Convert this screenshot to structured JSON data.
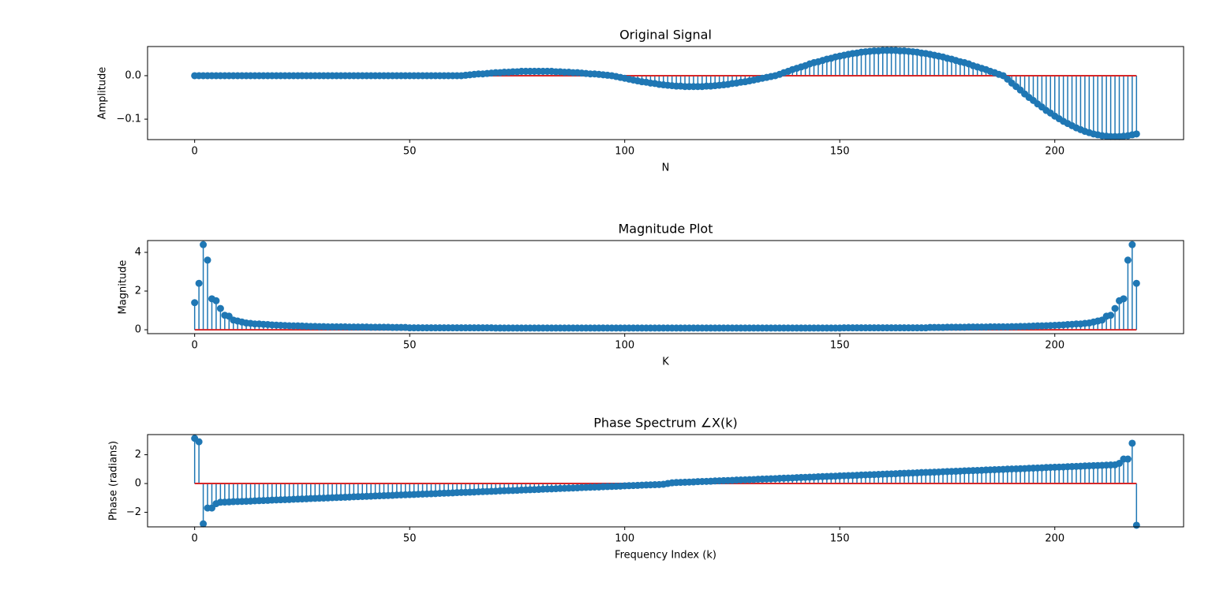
{
  "chart_data": [
    {
      "type": "stem",
      "title": "Original Signal",
      "xlabel": "N",
      "ylabel": "Amplitude",
      "color": "#1f77b4",
      "baseline_color": "#d62728",
      "xlim": [
        -10.95,
        229.95
      ],
      "xticks": [
        0,
        50,
        100,
        150,
        200
      ],
      "ylim": [
        -0.147,
        0.067
      ],
      "yticks": [
        {
          "value": -0.1,
          "label": "−0.1"
        },
        {
          "value": 0,
          "label": "0.0"
        }
      ],
      "x": [
        0,
        1,
        2,
        3,
        4,
        5,
        6,
        7,
        8,
        9,
        10,
        11,
        12,
        13,
        14,
        15,
        16,
        17,
        18,
        19,
        20,
        21,
        22,
        23,
        24,
        25,
        26,
        27,
        28,
        29,
        30,
        31,
        32,
        33,
        34,
        35,
        36,
        37,
        38,
        39,
        40,
        41,
        42,
        43,
        44,
        45,
        46,
        47,
        48,
        49,
        50,
        51,
        52,
        53,
        54,
        55,
        56,
        57,
        58,
        59,
        60,
        61,
        62,
        63,
        64,
        65,
        66,
        67,
        68,
        69,
        70,
        71,
        72,
        73,
        74,
        75,
        76,
        77,
        78,
        79,
        80,
        81,
        82,
        83,
        84,
        85,
        86,
        87,
        88,
        89,
        90,
        91,
        92,
        93,
        94,
        95,
        96,
        97,
        98,
        99,
        100,
        101,
        102,
        103,
        104,
        105,
        106,
        107,
        108,
        109,
        110,
        111,
        112,
        113,
        114,
        115,
        116,
        117,
        118,
        119,
        120,
        121,
        122,
        123,
        124,
        125,
        126,
        127,
        128,
        129,
        130,
        131,
        132,
        133,
        134,
        135,
        136,
        137,
        138,
        139,
        140,
        141,
        142,
        143,
        144,
        145,
        146,
        147,
        148,
        149,
        150,
        151,
        152,
        153,
        154,
        155,
        156,
        157,
        158,
        159,
        160,
        161,
        162,
        163,
        164,
        165,
        166,
        167,
        168,
        169,
        170,
        171,
        172,
        173,
        174,
        175,
        176,
        177,
        178,
        179,
        180,
        181,
        182,
        183,
        184,
        185,
        186,
        187,
        188,
        189,
        190,
        191,
        192,
        193,
        194,
        195,
        196,
        197,
        198,
        199,
        200,
        201,
        202,
        203,
        204,
        205,
        206,
        207,
        208,
        209,
        210,
        211,
        212,
        213,
        214,
        215,
        216,
        217,
        218,
        219
      ],
      "values": [
        0,
        0,
        0,
        0,
        0,
        0,
        0,
        0,
        0,
        0,
        0,
        0,
        0,
        0,
        0,
        0,
        0,
        0,
        0,
        0,
        0,
        0,
        0,
        0,
        0,
        0,
        0,
        0,
        0,
        0,
        0,
        0,
        0,
        0,
        0,
        0,
        0,
        0,
        0,
        0,
        0,
        0,
        0,
        0,
        0,
        0,
        0,
        0,
        0,
        0,
        0,
        0,
        0,
        0,
        0,
        0,
        0,
        0,
        0,
        0,
        0,
        0,
        0,
        0.001,
        0.002,
        0.003,
        0.004,
        0.004,
        0.005,
        0.006,
        0.007,
        0.007,
        0.008,
        0.008,
        0.009,
        0.009,
        0.01,
        0.01,
        0.01,
        0.01,
        0.01,
        0.01,
        0.01,
        0.01,
        0.009,
        0.009,
        0.008,
        0.008,
        0.007,
        0.007,
        0.006,
        0.005,
        0.004,
        0.004,
        0.003,
        0.002,
        0.001,
        0,
        -0.002,
        -0.004,
        -0.006,
        -0.008,
        -0.01,
        -0.012,
        -0.014,
        -0.015,
        -0.017,
        -0.018,
        -0.02,
        -0.021,
        -0.022,
        -0.023,
        -0.024,
        -0.024,
        -0.025,
        -0.025,
        -0.025,
        -0.025,
        -0.025,
        -0.024,
        -0.024,
        -0.023,
        -0.022,
        -0.021,
        -0.02,
        -0.018,
        -0.017,
        -0.015,
        -0.014,
        -0.012,
        -0.01,
        -0.008,
        -0.006,
        -0.004,
        -0.002,
        0,
        0.003,
        0.007,
        0.01,
        0.014,
        0.017,
        0.02,
        0.023,
        0.027,
        0.03,
        0.032,
        0.035,
        0.038,
        0.04,
        0.043,
        0.045,
        0.047,
        0.049,
        0.051,
        0.052,
        0.054,
        0.055,
        0.056,
        0.057,
        0.057,
        0.058,
        0.058,
        0.058,
        0.058,
        0.057,
        0.057,
        0.056,
        0.055,
        0.054,
        0.052,
        0.051,
        0.049,
        0.047,
        0.045,
        0.043,
        0.04,
        0.038,
        0.035,
        0.032,
        0.03,
        0.027,
        0.023,
        0.02,
        0.017,
        0.014,
        0.01,
        0.007,
        0.003,
        0,
        -0.008,
        -0.017,
        -0.025,
        -0.033,
        -0.042,
        -0.05,
        -0.057,
        -0.065,
        -0.072,
        -0.08,
        -0.086,
        -0.093,
        -0.099,
        -0.105,
        -0.11,
        -0.115,
        -0.12,
        -0.124,
        -0.128,
        -0.131,
        -0.134,
        -0.136,
        -0.138,
        -0.139,
        -0.14,
        -0.14,
        -0.14,
        -0.139,
        -0.138,
        -0.136,
        -0.134
      ]
    },
    {
      "type": "stem",
      "title": "Magnitude Plot",
      "xlabel": "K",
      "ylabel": "Magnitude",
      "color": "#1f77b4",
      "baseline_color": "#d62728",
      "xlim": [
        -10.95,
        229.95
      ],
      "xticks": [
        0,
        50,
        100,
        150,
        200
      ],
      "ylim": [
        -0.2,
        4.61
      ],
      "yticks": [
        0,
        2,
        4
      ],
      "x": [
        0,
        1,
        2,
        3,
        4,
        5,
        6,
        7,
        8,
        9,
        10,
        11,
        12,
        13,
        14,
        15,
        16,
        17,
        18,
        19,
        20,
        21,
        22,
        23,
        24,
        25,
        26,
        27,
        28,
        29,
        30,
        31,
        32,
        33,
        34,
        35,
        36,
        37,
        38,
        39,
        40,
        41,
        42,
        43,
        44,
        45,
        46,
        47,
        48,
        49,
        50,
        51,
        52,
        53,
        54,
        55,
        56,
        57,
        58,
        59,
        60,
        61,
        62,
        63,
        64,
        65,
        66,
        67,
        68,
        69,
        70,
        71,
        72,
        73,
        74,
        75,
        76,
        77,
        78,
        79,
        80,
        81,
        82,
        83,
        84,
        85,
        86,
        87,
        88,
        89,
        90,
        91,
        92,
        93,
        94,
        95,
        96,
        97,
        98,
        99,
        100,
        101,
        102,
        103,
        104,
        105,
        106,
        107,
        108,
        109,
        110,
        111,
        112,
        113,
        114,
        115,
        116,
        117,
        118,
        119,
        120,
        121,
        122,
        123,
        124,
        125,
        126,
        127,
        128,
        129,
        130,
        131,
        132,
        133,
        134,
        135,
        136,
        137,
        138,
        139,
        140,
        141,
        142,
        143,
        144,
        145,
        146,
        147,
        148,
        149,
        150,
        151,
        152,
        153,
        154,
        155,
        156,
        157,
        158,
        159,
        160,
        161,
        162,
        163,
        164,
        165,
        166,
        167,
        168,
        169,
        170,
        171,
        172,
        173,
        174,
        175,
        176,
        177,
        178,
        179,
        180,
        181,
        182,
        183,
        184,
        185,
        186,
        187,
        188,
        189,
        190,
        191,
        192,
        193,
        194,
        195,
        196,
        197,
        198,
        199,
        200,
        201,
        202,
        203,
        204,
        205,
        206,
        207,
        208,
        209,
        210,
        211,
        212,
        213,
        214,
        215,
        216,
        217,
        218,
        219
      ],
      "values": [
        1.4,
        2.4,
        4.4,
        3.6,
        1.6,
        1.5,
        1.1,
        0.75,
        0.7,
        0.5,
        0.45,
        0.4,
        0.35,
        0.33,
        0.3,
        0.3,
        0.28,
        0.27,
        0.25,
        0.24,
        0.23,
        0.22,
        0.21,
        0.2,
        0.2,
        0.19,
        0.18,
        0.17,
        0.17,
        0.16,
        0.16,
        0.15,
        0.15,
        0.15,
        0.15,
        0.15,
        0.14,
        0.14,
        0.14,
        0.14,
        0.14,
        0.13,
        0.13,
        0.13,
        0.13,
        0.13,
        0.12,
        0.12,
        0.12,
        0.12,
        0.1,
        0.1,
        0.1,
        0.1,
        0.1,
        0.1,
        0.1,
        0.1,
        0.1,
        0.1,
        0.1,
        0.1,
        0.1,
        0.1,
        0.1,
        0.1,
        0.1,
        0.1,
        0.1,
        0.1,
        0.09,
        0.09,
        0.09,
        0.09,
        0.09,
        0.09,
        0.09,
        0.09,
        0.09,
        0.09,
        0.09,
        0.09,
        0.09,
        0.09,
        0.09,
        0.09,
        0.09,
        0.09,
        0.09,
        0.09,
        0.09,
        0.09,
        0.09,
        0.09,
        0.09,
        0.09,
        0.09,
        0.09,
        0.09,
        0.09,
        0.09,
        0.09,
        0.09,
        0.09,
        0.09,
        0.09,
        0.09,
        0.09,
        0.09,
        0.09,
        0.09,
        0.09,
        0.09,
        0.09,
        0.09,
        0.09,
        0.09,
        0.09,
        0.09,
        0.09,
        0.09,
        0.09,
        0.09,
        0.09,
        0.09,
        0.09,
        0.09,
        0.09,
        0.09,
        0.09,
        0.09,
        0.09,
        0.09,
        0.09,
        0.09,
        0.09,
        0.09,
        0.09,
        0.09,
        0.09,
        0.09,
        0.09,
        0.09,
        0.09,
        0.09,
        0.09,
        0.09,
        0.09,
        0.09,
        0.09,
        0.09,
        0.1,
        0.1,
        0.1,
        0.1,
        0.1,
        0.1,
        0.1,
        0.1,
        0.1,
        0.1,
        0.1,
        0.1,
        0.1,
        0.1,
        0.1,
        0.1,
        0.1,
        0.1,
        0.1,
        0.1,
        0.12,
        0.12,
        0.12,
        0.12,
        0.13,
        0.13,
        0.13,
        0.13,
        0.13,
        0.14,
        0.14,
        0.14,
        0.14,
        0.14,
        0.15,
        0.15,
        0.15,
        0.15,
        0.15,
        0.16,
        0.16,
        0.17,
        0.17,
        0.18,
        0.19,
        0.2,
        0.2,
        0.21,
        0.22,
        0.23,
        0.24,
        0.25,
        0.27,
        0.28,
        0.3,
        0.3,
        0.33,
        0.35,
        0.4,
        0.45,
        0.5,
        0.7,
        0.75,
        1.1,
        1.5,
        1.6,
        3.6,
        4.4,
        2.4
      ]
    },
    {
      "type": "stem",
      "title": "Phase Spectrum ∠X(k)",
      "xlabel": "Frequency Index (k)",
      "ylabel": "Phase (radians)",
      "color": "#1f77b4",
      "baseline_color": "#d62728",
      "xlim": [
        -10.95,
        229.95
      ],
      "xticks": [
        0,
        50,
        100,
        150,
        200
      ],
      "ylim": [
        -3.01,
        3.4
      ],
      "yticks": [
        {
          "value": -2,
          "label": "−2"
        },
        0,
        2
      ],
      "x": [
        0,
        1,
        2,
        3,
        4,
        5,
        6,
        7,
        8,
        9,
        10,
        11,
        12,
        13,
        14,
        15,
        16,
        17,
        18,
        19,
        20,
        21,
        22,
        23,
        24,
        25,
        26,
        27,
        28,
        29,
        30,
        31,
        32,
        33,
        34,
        35,
        36,
        37,
        38,
        39,
        40,
        41,
        42,
        43,
        44,
        45,
        46,
        47,
        48,
        49,
        50,
        51,
        52,
        53,
        54,
        55,
        56,
        57,
        58,
        59,
        60,
        61,
        62,
        63,
        64,
        65,
        66,
        67,
        68,
        69,
        70,
        71,
        72,
        73,
        74,
        75,
        76,
        77,
        78,
        79,
        80,
        81,
        82,
        83,
        84,
        85,
        86,
        87,
        88,
        89,
        90,
        91,
        92,
        93,
        94,
        95,
        96,
        97,
        98,
        99,
        100,
        101,
        102,
        103,
        104,
        105,
        106,
        107,
        108,
        109,
        110,
        111,
        112,
        113,
        114,
        115,
        116,
        117,
        118,
        119,
        120,
        121,
        122,
        123,
        124,
        125,
        126,
        127,
        128,
        129,
        130,
        131,
        132,
        133,
        134,
        135,
        136,
        137,
        138,
        139,
        140,
        141,
        142,
        143,
        144,
        145,
        146,
        147,
        148,
        149,
        150,
        151,
        152,
        153,
        154,
        155,
        156,
        157,
        158,
        159,
        160,
        161,
        162,
        163,
        164,
        165,
        166,
        167,
        168,
        169,
        170,
        171,
        172,
        173,
        174,
        175,
        176,
        177,
        178,
        179,
        180,
        181,
        182,
        183,
        184,
        185,
        186,
        187,
        188,
        189,
        190,
        191,
        192,
        193,
        194,
        195,
        196,
        197,
        198,
        199,
        200,
        201,
        202,
        203,
        204,
        205,
        206,
        207,
        208,
        209,
        210,
        211,
        212,
        213,
        214,
        215,
        216,
        217,
        218,
        219
      ],
      "values": [
        3.14,
        2.9,
        -2.8,
        -1.7,
        -1.7,
        -1.4,
        -1.3,
        -1.29,
        -1.28,
        -1.26,
        -1.25,
        -1.24,
        -1.23,
        -1.22,
        -1.2,
        -1.19,
        -1.18,
        -1.17,
        -1.15,
        -1.14,
        -1.13,
        -1.12,
        -1.11,
        -1.09,
        -1.08,
        -1.07,
        -1.06,
        -1.04,
        -1.03,
        -1.02,
        -1.01,
        -1.0,
        -0.98,
        -0.97,
        -0.96,
        -0.95,
        -0.94,
        -0.92,
        -0.91,
        -0.9,
        -0.89,
        -0.88,
        -0.86,
        -0.85,
        -0.84,
        -0.83,
        -0.82,
        -0.8,
        -0.79,
        -0.78,
        -0.77,
        -0.76,
        -0.74,
        -0.73,
        -0.72,
        -0.71,
        -0.7,
        -0.68,
        -0.67,
        -0.66,
        -0.65,
        -0.63,
        -0.62,
        -0.61,
        -0.6,
        -0.59,
        -0.57,
        -0.56,
        -0.55,
        -0.54,
        -0.53,
        -0.51,
        -0.5,
        -0.49,
        -0.48,
        -0.47,
        -0.45,
        -0.44,
        -0.43,
        -0.42,
        -0.41,
        -0.39,
        -0.38,
        -0.37,
        -0.36,
        -0.34,
        -0.33,
        -0.32,
        -0.31,
        -0.3,
        -0.28,
        -0.27,
        -0.26,
        -0.25,
        -0.24,
        -0.22,
        -0.21,
        -0.2,
        -0.19,
        -0.18,
        -0.16,
        -0.15,
        -0.14,
        -0.13,
        -0.11,
        -0.1,
        -0.09,
        -0.08,
        -0.07,
        -0.05,
        0,
        0.05,
        0.07,
        0.08,
        0.09,
        0.1,
        0.11,
        0.13,
        0.14,
        0.15,
        0.16,
        0.18,
        0.19,
        0.2,
        0.21,
        0.22,
        0.24,
        0.25,
        0.26,
        0.27,
        0.28,
        0.3,
        0.31,
        0.32,
        0.33,
        0.34,
        0.36,
        0.37,
        0.38,
        0.39,
        0.41,
        0.42,
        0.43,
        0.44,
        0.45,
        0.47,
        0.48,
        0.49,
        0.5,
        0.51,
        0.53,
        0.54,
        0.55,
        0.56,
        0.57,
        0.59,
        0.6,
        0.61,
        0.62,
        0.63,
        0.65,
        0.66,
        0.67,
        0.68,
        0.7,
        0.71,
        0.72,
        0.73,
        0.74,
        0.76,
        0.77,
        0.78,
        0.79,
        0.8,
        0.82,
        0.83,
        0.84,
        0.85,
        0.86,
        0.88,
        0.89,
        0.9,
        0.91,
        0.92,
        0.94,
        0.95,
        0.96,
        0.97,
        0.98,
        1.0,
        1.01,
        1.02,
        1.03,
        1.04,
        1.06,
        1.07,
        1.08,
        1.09,
        1.11,
        1.12,
        1.13,
        1.14,
        1.15,
        1.17,
        1.18,
        1.19,
        1.2,
        1.22,
        1.23,
        1.24,
        1.25,
        1.26,
        1.28,
        1.29,
        1.3,
        1.4,
        1.7,
        1.7,
        2.8,
        -2.9
      ]
    }
  ]
}
